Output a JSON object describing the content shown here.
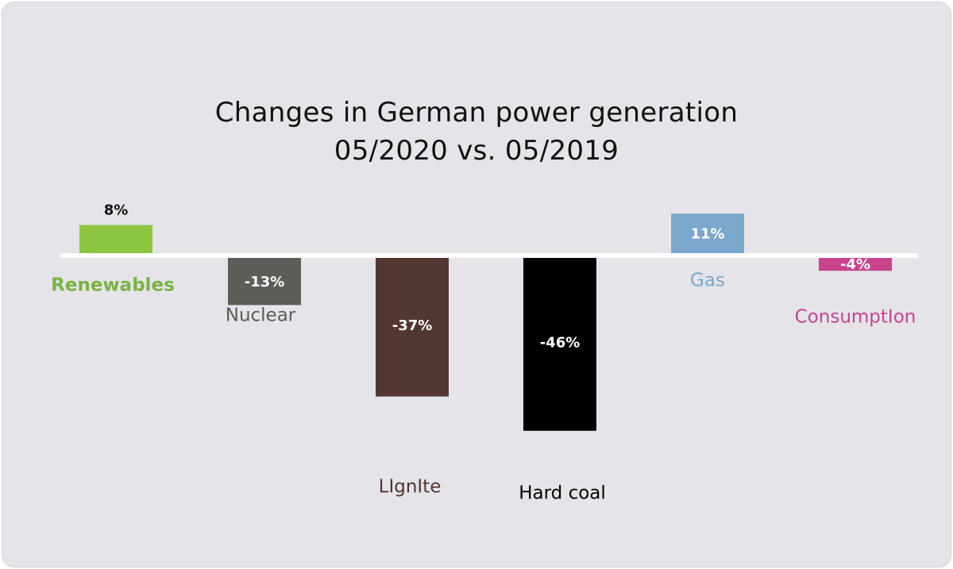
{
  "chart_data": {
    "type": "bar",
    "title": "Changes in German power generation",
    "subtitle": "05/2020 vs. 05/2019",
    "categories": [
      "Renewables",
      "Nuclear",
      "Lignite",
      "Hard coal",
      "Gas",
      "Consumption"
    ],
    "values": [
      8,
      -13,
      -37,
      -46,
      11,
      -4
    ],
    "value_labels": [
      "8%",
      "-13%",
      "-37%",
      "-46%",
      "11%",
      "-4%"
    ],
    "display_labels": [
      "Renewables",
      "Nuclear",
      "LIgnIte",
      "Hard coal",
      "Gas",
      "ConsumptIon"
    ],
    "colors": [
      "#8cc43f",
      "#5c5c58",
      "#523631",
      "#000000",
      "#7ba8cc",
      "#c9438d"
    ],
    "label_colors": [
      "#7cb342",
      "#5c5c5c",
      "#523631",
      "#000000",
      "#7ba8cc",
      "#c9438d"
    ],
    "grid": false,
    "legend": "none"
  }
}
